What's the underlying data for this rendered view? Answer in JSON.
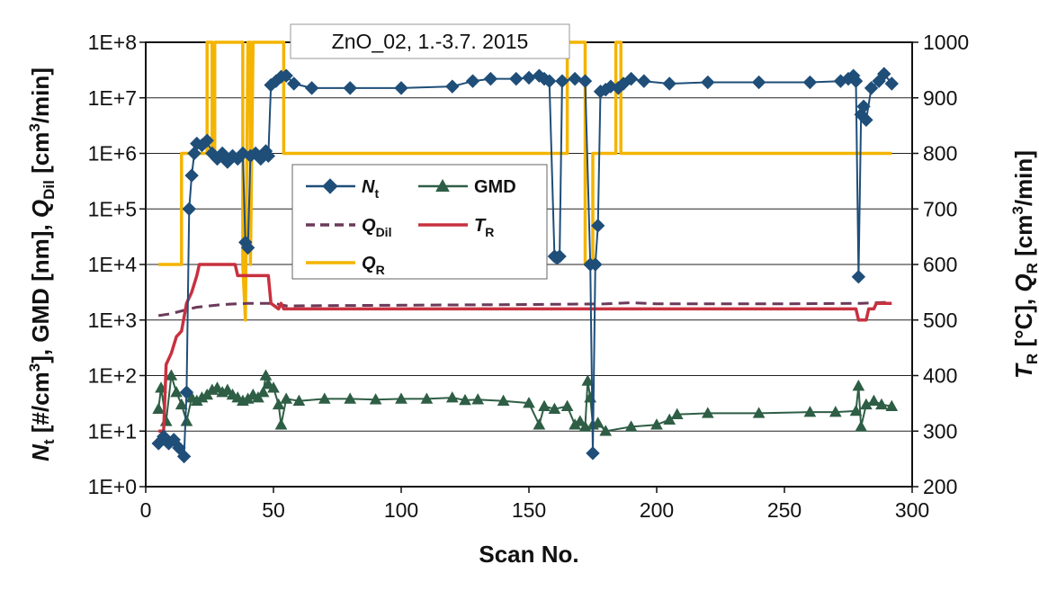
{
  "chart_data": {
    "type": "line",
    "title": "ZnO_02, 1.-3.7. 2015",
    "xlabel": "Scan No.",
    "x_ticks": [
      "0",
      "50",
      "100",
      "150",
      "200",
      "250",
      "300"
    ],
    "xlim": [
      0,
      300
    ],
    "y_left": {
      "label_parts": [
        {
          "text": "N",
          "style": "italic"
        },
        {
          "text": "t",
          "sub": true
        },
        {
          "text": " [#/cm"
        },
        {
          "text": "3",
          "sup": true
        },
        {
          "text": "], GMD [nm], "
        },
        {
          "text": "Q",
          "style": "italic"
        },
        {
          "text": "Dil",
          "sub": true
        },
        {
          "text": " [cm"
        },
        {
          "text": "3",
          "sup": true
        },
        {
          "text": "/min]"
        }
      ],
      "scale": "log",
      "lim": [
        1,
        100000000
      ],
      "ticks": [
        "1E+0",
        "1E+1",
        "1E+2",
        "1E+3",
        "1E+4",
        "1E+5",
        "1E+6",
        "1E+7",
        "1E+8"
      ]
    },
    "y_right": {
      "label_parts": [
        {
          "text": "T",
          "style": "italic"
        },
        {
          "text": "R",
          "sub": true
        },
        {
          "text": " [°C], "
        },
        {
          "text": "Q",
          "style": "italic"
        },
        {
          "text": "R",
          "sub": true
        },
        {
          "text": " [cm"
        },
        {
          "text": "3",
          "sup": true
        },
        {
          "text": "/min]"
        }
      ],
      "scale": "linear",
      "lim": [
        200,
        1000
      ],
      "ticks": [
        "200",
        "300",
        "400",
        "500",
        "600",
        "700",
        "800",
        "900",
        "1000"
      ]
    },
    "grid": "horizontal",
    "legend_placement": "center-left",
    "series": [
      {
        "name": "N",
        "name_sub": "t",
        "axis": "left",
        "style": "line-diamond",
        "color": "#1f4e79",
        "points": [
          [
            5,
            6
          ],
          [
            7,
            8
          ],
          [
            9,
            6
          ],
          [
            11,
            7
          ],
          [
            13,
            5
          ],
          [
            15,
            3.5
          ],
          [
            16,
            50
          ],
          [
            17,
            100000
          ],
          [
            18,
            400000
          ],
          [
            19,
            1000000
          ],
          [
            20,
            1500000
          ],
          [
            22,
            1400000
          ],
          [
            24,
            1700000
          ],
          [
            26,
            1000000
          ],
          [
            28,
            800000
          ],
          [
            30,
            1000000
          ],
          [
            32,
            700000
          ],
          [
            34,
            900000
          ],
          [
            36,
            800000
          ],
          [
            38,
            1000000
          ],
          [
            39,
            25000
          ],
          [
            40,
            20000
          ],
          [
            41,
            900000
          ],
          [
            43,
            1000000
          ],
          [
            45,
            800000
          ],
          [
            47,
            1100000
          ],
          [
            48,
            900000
          ],
          [
            49,
            17000000
          ],
          [
            51,
            20000000
          ],
          [
            53,
            24000000
          ],
          [
            55,
            25000000
          ],
          [
            58,
            18000000
          ],
          [
            65,
            15000000
          ],
          [
            80,
            15000000
          ],
          [
            100,
            15000000
          ],
          [
            120,
            16000000
          ],
          [
            128,
            20000000
          ],
          [
            135,
            22000000
          ],
          [
            145,
            22000000
          ],
          [
            150,
            23000000
          ],
          [
            154,
            25000000
          ],
          [
            156,
            22000000
          ],
          [
            158,
            20000000
          ],
          [
            160,
            14000
          ],
          [
            161,
            13000
          ],
          [
            162,
            14000
          ],
          [
            163,
            20000000
          ],
          [
            168,
            22000000
          ],
          [
            172,
            20000000
          ],
          [
            174,
            10000
          ],
          [
            175,
            4
          ],
          [
            176,
            10000
          ],
          [
            177,
            50000
          ],
          [
            178,
            13000000
          ],
          [
            180,
            14000000
          ],
          [
            182,
            16000000
          ],
          [
            185,
            15000000
          ],
          [
            187,
            18000000
          ],
          [
            190,
            22000000
          ],
          [
            195,
            20000000
          ],
          [
            205,
            18000000
          ],
          [
            220,
            19000000
          ],
          [
            240,
            19000000
          ],
          [
            260,
            19000000
          ],
          [
            272,
            20000000
          ],
          [
            275,
            22000000
          ],
          [
            277,
            25000000
          ],
          [
            278,
            20000000
          ],
          [
            279,
            6000
          ],
          [
            280,
            5000000
          ],
          [
            281,
            7000000
          ],
          [
            282,
            4000000
          ],
          [
            284,
            15000000
          ],
          [
            287,
            20000000
          ],
          [
            289,
            27000000
          ],
          [
            292,
            18000000
          ]
        ]
      },
      {
        "name": "GMD",
        "axis": "left",
        "style": "line-triangle",
        "color": "#2e5e45",
        "points": [
          [
            5,
            25
          ],
          [
            6,
            60
          ],
          [
            8,
            15
          ],
          [
            10,
            100
          ],
          [
            12,
            50
          ],
          [
            14,
            30
          ],
          [
            16,
            15
          ],
          [
            18,
            40
          ],
          [
            20,
            35
          ],
          [
            22,
            40
          ],
          [
            24,
            45
          ],
          [
            26,
            55
          ],
          [
            28,
            60
          ],
          [
            30,
            50
          ],
          [
            32,
            55
          ],
          [
            34,
            45
          ],
          [
            36,
            40
          ],
          [
            38,
            35
          ],
          [
            40,
            38
          ],
          [
            42,
            45
          ],
          [
            44,
            40
          ],
          [
            46,
            50
          ],
          [
            47,
            100
          ],
          [
            48,
            70
          ],
          [
            50,
            60
          ],
          [
            52,
            30
          ],
          [
            53,
            13
          ],
          [
            55,
            38
          ],
          [
            60,
            35
          ],
          [
            70,
            38
          ],
          [
            80,
            38
          ],
          [
            90,
            37
          ],
          [
            100,
            38
          ],
          [
            110,
            38
          ],
          [
            120,
            40
          ],
          [
            125,
            36
          ],
          [
            130,
            37
          ],
          [
            140,
            35
          ],
          [
            150,
            32
          ],
          [
            154,
            13
          ],
          [
            156,
            28
          ],
          [
            160,
            25
          ],
          [
            165,
            28
          ],
          [
            168,
            13
          ],
          [
            170,
            15
          ],
          [
            172,
            12
          ],
          [
            173,
            80
          ],
          [
            174,
            40
          ],
          [
            175,
            13
          ],
          [
            177,
            14
          ],
          [
            180,
            10
          ],
          [
            190,
            12
          ],
          [
            200,
            13
          ],
          [
            205,
            16
          ],
          [
            208,
            20
          ],
          [
            220,
            21
          ],
          [
            240,
            21
          ],
          [
            260,
            22
          ],
          [
            270,
            22
          ],
          [
            278,
            23
          ],
          [
            279,
            65
          ],
          [
            280,
            12
          ],
          [
            282,
            30
          ],
          [
            285,
            35
          ],
          [
            288,
            30
          ],
          [
            292,
            28
          ]
        ]
      },
      {
        "name": "Q",
        "name_sub": "Dil",
        "axis": "left",
        "style": "dashed",
        "color": "#6b3a5a",
        "points": [
          [
            5,
            1200
          ],
          [
            10,
            1300
          ],
          [
            15,
            1500
          ],
          [
            20,
            1700
          ],
          [
            30,
            1900
          ],
          [
            40,
            2000
          ],
          [
            45,
            2000
          ],
          [
            50,
            2000
          ],
          [
            55,
            1800
          ],
          [
            100,
            1850
          ],
          [
            150,
            1900
          ],
          [
            180,
            1950
          ],
          [
            190,
            2050
          ],
          [
            200,
            1950
          ],
          [
            250,
            1950
          ],
          [
            280,
            2000
          ],
          [
            292,
            2100
          ]
        ]
      },
      {
        "name": "T",
        "name_sub": "R",
        "axis": "right",
        "style": "solid",
        "color": "#c8313f",
        "points": [
          [
            5,
            300
          ],
          [
            7,
            300
          ],
          [
            8,
            420
          ],
          [
            10,
            440
          ],
          [
            12,
            470
          ],
          [
            14,
            480
          ],
          [
            16,
            530
          ],
          [
            18,
            550
          ],
          [
            20,
            580
          ],
          [
            21,
            600
          ],
          [
            35,
            600
          ],
          [
            36,
            580
          ],
          [
            48,
            580
          ],
          [
            49,
            530
          ],
          [
            52,
            520
          ],
          [
            53,
            530
          ],
          [
            54,
            520
          ],
          [
            160,
            520
          ],
          [
            175,
            520
          ],
          [
            180,
            520
          ],
          [
            250,
            520
          ],
          [
            278,
            520
          ],
          [
            279,
            500
          ],
          [
            282,
            500
          ],
          [
            283,
            520
          ],
          [
            285,
            520
          ],
          [
            286,
            530
          ],
          [
            292,
            530
          ]
        ]
      },
      {
        "name": "Q",
        "name_sub": "R",
        "axis": "right",
        "style": "solid",
        "color": "#f4b400",
        "points": [
          [
            5,
            600
          ],
          [
            14,
            600
          ],
          [
            14,
            800
          ],
          [
            24,
            800
          ],
          [
            24,
            1000
          ],
          [
            26,
            1000
          ],
          [
            26,
            800
          ],
          [
            27,
            800
          ],
          [
            27,
            1000
          ],
          [
            38,
            1000
          ],
          [
            38,
            600
          ],
          [
            39,
            500
          ],
          [
            40,
            1000
          ],
          [
            41,
            1000
          ],
          [
            41,
            600
          ],
          [
            42,
            1000
          ],
          [
            54,
            1000
          ],
          [
            54,
            800
          ],
          [
            165,
            800
          ],
          [
            165,
            1000
          ],
          [
            172,
            1000
          ],
          [
            172,
            600
          ],
          [
            175,
            600
          ],
          [
            175,
            800
          ],
          [
            184,
            800
          ],
          [
            184,
            1000
          ],
          [
            186,
            1000
          ],
          [
            186,
            800
          ],
          [
            292,
            800
          ]
        ]
      }
    ]
  }
}
